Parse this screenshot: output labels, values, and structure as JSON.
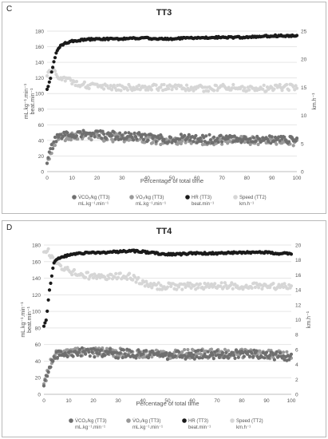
{
  "panels": [
    {
      "tag": "C",
      "title": "TT3"
    },
    {
      "tag": "D",
      "title": "TT4"
    }
  ],
  "colors": {
    "hr": "#1a1a1a",
    "vco2": "#6f6f6f",
    "vo2": "#9a9a9a",
    "speed": "#d6d6d6",
    "grid": "#e6e6e6"
  },
  "chart_data": [
    {
      "type": "scatter",
      "title": "TT3",
      "xlabel": "Percentage of total time",
      "ylabel_left": [
        "mL.kg⁻¹.min⁻¹",
        "beat.min⁻¹"
      ],
      "ylabel_right": "km.h⁻¹",
      "xlim": [
        0,
        100
      ],
      "ylim_left": [
        0,
        180
      ],
      "ylim_right": [
        0,
        25
      ],
      "x_ticks": [
        0,
        10,
        20,
        30,
        40,
        50,
        60,
        70,
        80,
        90,
        100
      ],
      "y_left_ticks": [
        0,
        20,
        40,
        60,
        80,
        100,
        120,
        140,
        160,
        180
      ],
      "y_right_ticks": [
        0,
        5,
        10,
        15,
        20,
        25
      ],
      "grid": true,
      "legend_position": "bottom",
      "series": [
        {
          "name": "V̇CO₂/kg (TT3) mL.kg⁻¹.min⁻¹",
          "axis": "left",
          "x": [
            0,
            1,
            2,
            3,
            4,
            5,
            7,
            10,
            15,
            20,
            25,
            30,
            35,
            40,
            45,
            50,
            55,
            60,
            65,
            70,
            75,
            80,
            85,
            90,
            95,
            100
          ],
          "y": [
            14,
            22,
            32,
            38,
            42,
            44,
            46,
            48,
            49,
            47,
            47,
            45,
            45,
            44,
            42,
            42,
            43,
            42,
            42,
            42,
            42,
            42,
            42,
            41,
            41,
            40
          ]
        },
        {
          "name": "V̇O₂/kg (TT3) mL.kg⁻¹.min⁻¹",
          "axis": "left",
          "x": [
            0,
            1,
            2,
            3,
            4,
            5,
            7,
            10,
            15,
            20,
            25,
            30,
            35,
            40,
            45,
            50,
            55,
            60,
            65,
            70,
            75,
            80,
            85,
            90,
            95,
            100
          ],
          "y": [
            12,
            20,
            30,
            36,
            40,
            42,
            44,
            46,
            46,
            45,
            44,
            43,
            43,
            42,
            40,
            40,
            41,
            40,
            40,
            40,
            40,
            40,
            40,
            39,
            39,
            38
          ]
        },
        {
          "name": "HR (TT3) beat.min⁻¹",
          "axis": "left",
          "x": [
            0,
            1,
            2,
            3,
            4,
            5,
            7,
            10,
            15,
            20,
            25,
            30,
            35,
            40,
            45,
            50,
            55,
            60,
            65,
            70,
            75,
            80,
            85,
            90,
            95,
            100
          ],
          "y": [
            105,
            115,
            130,
            145,
            155,
            160,
            164,
            167,
            169,
            170,
            170,
            170,
            171,
            171,
            170,
            170,
            171,
            171,
            172,
            172,
            172,
            172,
            173,
            174,
            174,
            174
          ]
        },
        {
          "name": "Speed (TT2) km.h⁻¹",
          "axis": "right",
          "x": [
            0,
            1,
            2,
            3,
            4,
            5,
            7,
            10,
            15,
            20,
            25,
            30,
            35,
            40,
            45,
            50,
            55,
            60,
            65,
            70,
            75,
            80,
            85,
            90,
            95,
            100
          ],
          "y": [
            17,
            18,
            18,
            17.5,
            17,
            17,
            16.5,
            16,
            15.5,
            15,
            15,
            15,
            15,
            15,
            15,
            15,
            15,
            14.8,
            14.8,
            15,
            15,
            14.8,
            14.8,
            14.8,
            15,
            15
          ]
        }
      ]
    },
    {
      "type": "scatter",
      "title": "TT4",
      "xlabel": "Percentage of total time",
      "ylabel_left": [
        "mL.kg⁻¹.min⁻¹",
        "beat.min⁻¹"
      ],
      "ylabel_right": "km.h⁻¹",
      "xlim": [
        0,
        100
      ],
      "ylim_left": [
        0,
        180
      ],
      "ylim_right": [
        0,
        20
      ],
      "x_ticks": [
        0,
        10,
        20,
        30,
        40,
        50,
        60,
        70,
        80,
        90,
        100
      ],
      "y_left_ticks": [
        0,
        20,
        40,
        60,
        80,
        100,
        120,
        140,
        160,
        180
      ],
      "y_right_ticks": [
        0,
        2,
        4,
        6,
        8,
        10,
        12,
        14,
        16,
        18,
        20
      ],
      "grid": true,
      "legend_position": "bottom",
      "series": [
        {
          "name": "V̇CO₂/kg (TT3) mL.kg⁻¹.min⁻¹",
          "axis": "left",
          "x": [
            0,
            1,
            2,
            3,
            4,
            5,
            7,
            10,
            15,
            20,
            25,
            30,
            35,
            40,
            45,
            50,
            55,
            60,
            65,
            70,
            75,
            80,
            85,
            90,
            95,
            100
          ],
          "y": [
            10,
            20,
            30,
            38,
            43,
            46,
            48,
            50,
            51,
            50,
            50,
            49,
            49,
            48,
            47,
            47,
            48,
            48,
            48,
            48,
            48,
            48,
            48,
            47,
            46,
            45
          ]
        },
        {
          "name": "V̇O₂/kg (TT3) mL.kg⁻¹.min⁻¹",
          "axis": "left",
          "x": [
            0,
            1,
            2,
            3,
            4,
            5,
            7,
            10,
            15,
            20,
            25,
            30,
            35,
            40,
            45,
            50,
            55,
            60,
            65,
            70,
            75,
            80,
            85,
            90,
            95,
            100
          ],
          "y": [
            12,
            22,
            32,
            40,
            44,
            47,
            49,
            51,
            52,
            51,
            51,
            50,
            50,
            49,
            48,
            48,
            49,
            49,
            49,
            49,
            49,
            49,
            49,
            48,
            47,
            46
          ]
        },
        {
          "name": "HR (TT3) beat.min⁻¹",
          "axis": "left",
          "x": [
            0,
            1,
            2,
            3,
            4,
            5,
            7,
            10,
            15,
            20,
            25,
            30,
            35,
            40,
            45,
            50,
            55,
            60,
            65,
            70,
            75,
            80,
            85,
            90,
            95,
            100
          ],
          "y": [
            83,
            90,
            120,
            140,
            158,
            163,
            165,
            168,
            170,
            171,
            171,
            172,
            173,
            172,
            170,
            169,
            169,
            170,
            170,
            170,
            171,
            171,
            171,
            171,
            170,
            170
          ]
        },
        {
          "name": "Speed (TT2) km.h⁻¹",
          "axis": "right",
          "x": [
            0,
            1,
            2,
            3,
            4,
            5,
            7,
            10,
            15,
            20,
            25,
            30,
            35,
            40,
            45,
            50,
            55,
            60,
            65,
            70,
            75,
            80,
            85,
            90,
            95,
            100
          ],
          "y": [
            19,
            19.5,
            19,
            18.5,
            18,
            17.5,
            17,
            16.5,
            16,
            15.8,
            15.8,
            15.8,
            15.8,
            15,
            14.5,
            14.5,
            14.5,
            14.5,
            14.5,
            14.5,
            14.5,
            14.5,
            14.5,
            14.5,
            14.5,
            14.5
          ]
        }
      ]
    }
  ]
}
